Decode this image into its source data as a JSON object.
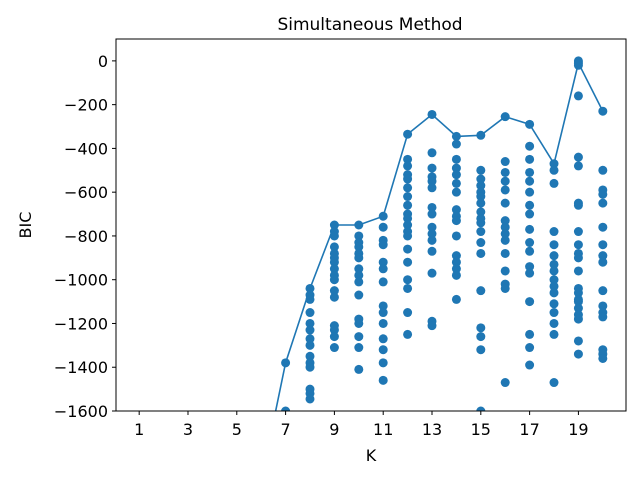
{
  "chart_data": {
    "type": "scatter",
    "title": "Simultaneous Method",
    "xlabel": "K",
    "ylabel": "BIC",
    "xlim": [
      0.05,
      20.95
    ],
    "ylim": [
      -1600,
      100
    ],
    "xticks": [
      1,
      3,
      5,
      7,
      9,
      11,
      13,
      15,
      17,
      19
    ],
    "xtick_labels": [
      "1",
      "3",
      "5",
      "7",
      "9",
      "11",
      "13",
      "15",
      "17",
      "19"
    ],
    "yticks": [
      0,
      -200,
      -400,
      -600,
      -800,
      -1000,
      -1200,
      -1400,
      -1600
    ],
    "ytick_labels": [
      "0",
      "−200",
      "−400",
      "−600",
      "−800",
      "−1000",
      "−1200",
      "−1400",
      "−1600"
    ],
    "grid": false,
    "color": "#1f77b4",
    "line": {
      "x": [
        6.5,
        7,
        8,
        9,
        10,
        11,
        12,
        13,
        14,
        15,
        16,
        17,
        18,
        19,
        20
      ],
      "y": [
        -1650,
        -1380,
        -1040,
        -750,
        -750,
        -710,
        -335,
        -245,
        -345,
        -340,
        -255,
        -290,
        -470,
        -10,
        -230
      ]
    },
    "points": [
      {
        "x": 7,
        "y": [
          -1380,
          -1600
        ]
      },
      {
        "x": 8,
        "y": [
          -1040,
          -1070,
          -1090,
          -1150,
          -1200,
          -1230,
          -1270,
          -1300,
          -1350,
          -1380,
          -1400,
          -1500,
          -1520,
          -1545
        ]
      },
      {
        "x": 9,
        "y": [
          -750,
          -780,
          -800,
          -850,
          -880,
          -900,
          -920,
          -950,
          -980,
          -1000,
          -1050,
          -1080,
          -1210,
          -1230,
          -1260,
          -1310
        ]
      },
      {
        "x": 10,
        "y": [
          -750,
          -800,
          -830,
          -850,
          -880,
          -900,
          -950,
          -980,
          -1010,
          -1070,
          -1180,
          -1200,
          -1260,
          -1310,
          -1410
        ]
      },
      {
        "x": 11,
        "y": [
          -710,
          -760,
          -820,
          -840,
          -920,
          -950,
          -1010,
          -1120,
          -1150,
          -1200,
          -1270,
          -1320,
          -1380,
          -1460
        ]
      },
      {
        "x": 12,
        "y": [
          -335,
          -450,
          -480,
          -520,
          -540,
          -580,
          -620,
          -660,
          -700,
          -720,
          -750,
          -780,
          -800,
          -860,
          -920,
          -1000,
          -1040,
          -1150,
          -1250
        ]
      },
      {
        "x": 13,
        "y": [
          -245,
          -420,
          -490,
          -530,
          -550,
          -580,
          -670,
          -700,
          -760,
          -790,
          -820,
          -870,
          -970,
          -1190,
          -1210
        ]
      },
      {
        "x": 14,
        "y": [
          -345,
          -380,
          -450,
          -490,
          -520,
          -560,
          -600,
          -680,
          -710,
          -730,
          -800,
          -890,
          -920,
          -950,
          -980,
          -1090
        ]
      },
      {
        "x": 15,
        "y": [
          -340,
          -500,
          -540,
          -570,
          -600,
          -620,
          -650,
          -690,
          -720,
          -740,
          -780,
          -830,
          -880,
          -1050,
          -1220,
          -1260,
          -1320,
          -1600
        ]
      },
      {
        "x": 16,
        "y": [
          -255,
          -460,
          -510,
          -550,
          -590,
          -650,
          -730,
          -760,
          -790,
          -820,
          -880,
          -960,
          -1020,
          -1040,
          -1470
        ]
      },
      {
        "x": 17,
        "y": [
          -290,
          -390,
          -450,
          -510,
          -550,
          -600,
          -660,
          -700,
          -770,
          -830,
          -870,
          -940,
          -970,
          -1100,
          -1250,
          -1310,
          -1390
        ]
      },
      {
        "x": 18,
        "y": [
          -470,
          -500,
          -560,
          -780,
          -840,
          -890,
          -930,
          -960,
          -1000,
          -1030,
          -1060,
          -1110,
          -1150,
          -1200,
          -1250,
          -1470
        ]
      },
      {
        "x": 19,
        "y": [
          0,
          -10,
          -20,
          -160,
          -440,
          -480,
          -650,
          -660,
          -780,
          -840,
          -880,
          -900,
          -960,
          -1040,
          -1060,
          -1090,
          -1100,
          -1130,
          -1160,
          -1180,
          -1280,
          -1340
        ]
      },
      {
        "x": 20,
        "y": [
          -230,
          -500,
          -590,
          -610,
          -650,
          -760,
          -840,
          -890,
          -920,
          -1050,
          -1120,
          -1150,
          -1170,
          -1320,
          -1340,
          -1360
        ]
      }
    ]
  }
}
